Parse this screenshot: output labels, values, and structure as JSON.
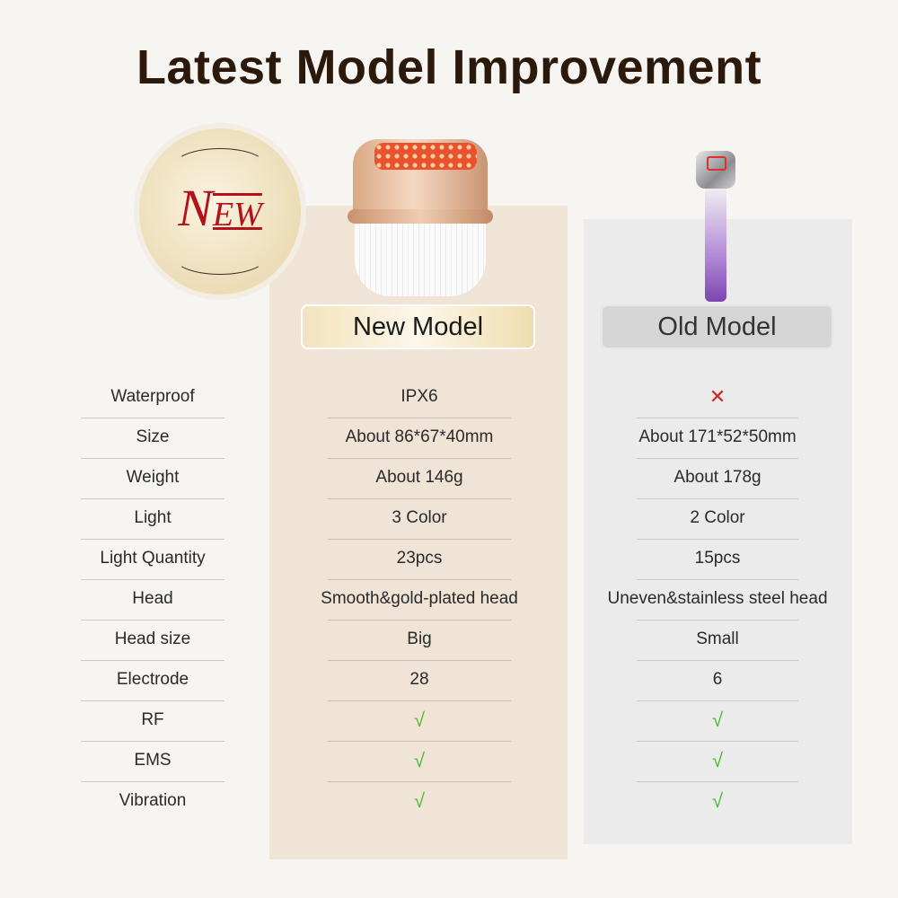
{
  "title": "Latest Model Improvement",
  "badge": {
    "text_big": "N",
    "text_small": "EW"
  },
  "columns": {
    "new": "New Model",
    "old": "Old Model"
  },
  "colors": {
    "new_panel": "#efe4d6",
    "old_panel": "#ebebeb",
    "check": "#4cb82c",
    "cross": "#d0261c",
    "title": "#2b1a0c"
  },
  "rows": [
    {
      "label": "Waterproof",
      "new": "IPX6",
      "old": "✕"
    },
    {
      "label": "Size",
      "new": "About 86*67*40mm",
      "old": "About 171*52*50mm"
    },
    {
      "label": "Weight",
      "new": "About 146g",
      "old": "About 178g"
    },
    {
      "label": "Light",
      "new": "3 Color",
      "old": "2 Color"
    },
    {
      "label": "Light Quantity",
      "new": "23pcs",
      "old": "15pcs"
    },
    {
      "label": "Head",
      "new": "Smooth&gold-plated head",
      "old": "Uneven&stainless steel head"
    },
    {
      "label": "Head size",
      "new": "Big",
      "old": "Small"
    },
    {
      "label": "Electrode",
      "new": "28",
      "old": "6"
    },
    {
      "label": "RF",
      "new": "√",
      "old": "√"
    },
    {
      "label": "EMS",
      "new": "√",
      "old": "√"
    },
    {
      "label": "Vibration",
      "new": "√",
      "old": "√"
    }
  ]
}
